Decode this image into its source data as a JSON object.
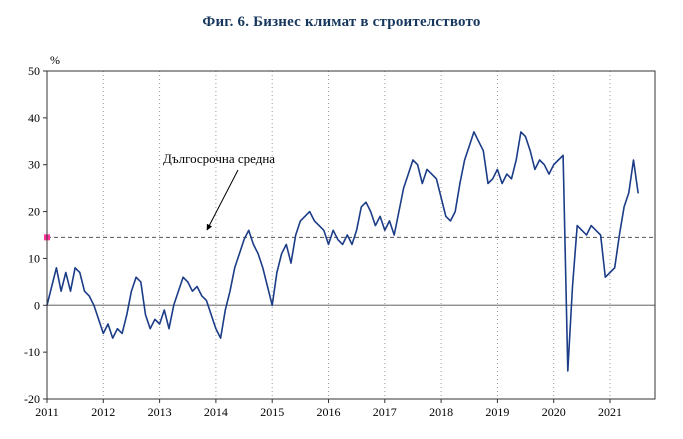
{
  "page": {
    "background": "#ffffff"
  },
  "chart_data": {
    "type": "line",
    "title": "Фиг. 6. Бизнес климат в строителството",
    "title_color": "#17375E",
    "ylabel": "%",
    "xlabel": "",
    "ylim": [
      -20,
      50
    ],
    "y_ticks": [
      50,
      40,
      30,
      20,
      10,
      0,
      -10,
      -20
    ],
    "x_ticks": [
      2011,
      2012,
      2013,
      2014,
      2015,
      2016,
      2017,
      2018,
      2019,
      2020,
      2021
    ],
    "start": "2011-01",
    "end": "2021-07",
    "frequency": "monthly",
    "grid": "vertical-dotted",
    "legend": "none",
    "line_color": "#1b3c87",
    "zero_line_color": "#808080",
    "reference_line": {
      "value": 14.5,
      "label": "Дългосрочна средна",
      "style": "dashed",
      "line_color": "#555555",
      "marker_color": "#ff3399"
    },
    "series": [
      {
        "name": "Бизнес климат в строителството",
        "values": [
          0,
          4,
          8,
          3,
          7,
          3,
          8,
          7,
          3,
          2,
          0,
          -3,
          -6,
          -4,
          -7,
          -5,
          -6,
          -2,
          3,
          6,
          5,
          -2,
          -5,
          -3,
          -4,
          -1,
          -5,
          0,
          3,
          6,
          5,
          3,
          4,
          2,
          1,
          -2,
          -5,
          -7,
          -1,
          3,
          8,
          11,
          14,
          16,
          13,
          11,
          8,
          4,
          0,
          7,
          11,
          13,
          9,
          15,
          18,
          19,
          20,
          18,
          17,
          16,
          13,
          16,
          14,
          13,
          15,
          13,
          16,
          21,
          22,
          20,
          17,
          19,
          16,
          18,
          15,
          20,
          25,
          28,
          31,
          30,
          26,
          29,
          28,
          27,
          23,
          19,
          18,
          20,
          26,
          31,
          34,
          37,
          35,
          33,
          26,
          27,
          29,
          26,
          28,
          27,
          31,
          37,
          36,
          33,
          29,
          31,
          30,
          28,
          30,
          31,
          32,
          -14,
          4,
          17,
          16,
          15,
          17,
          16,
          15,
          6,
          7,
          8,
          15,
          21,
          24,
          31,
          24
        ]
      }
    ]
  }
}
